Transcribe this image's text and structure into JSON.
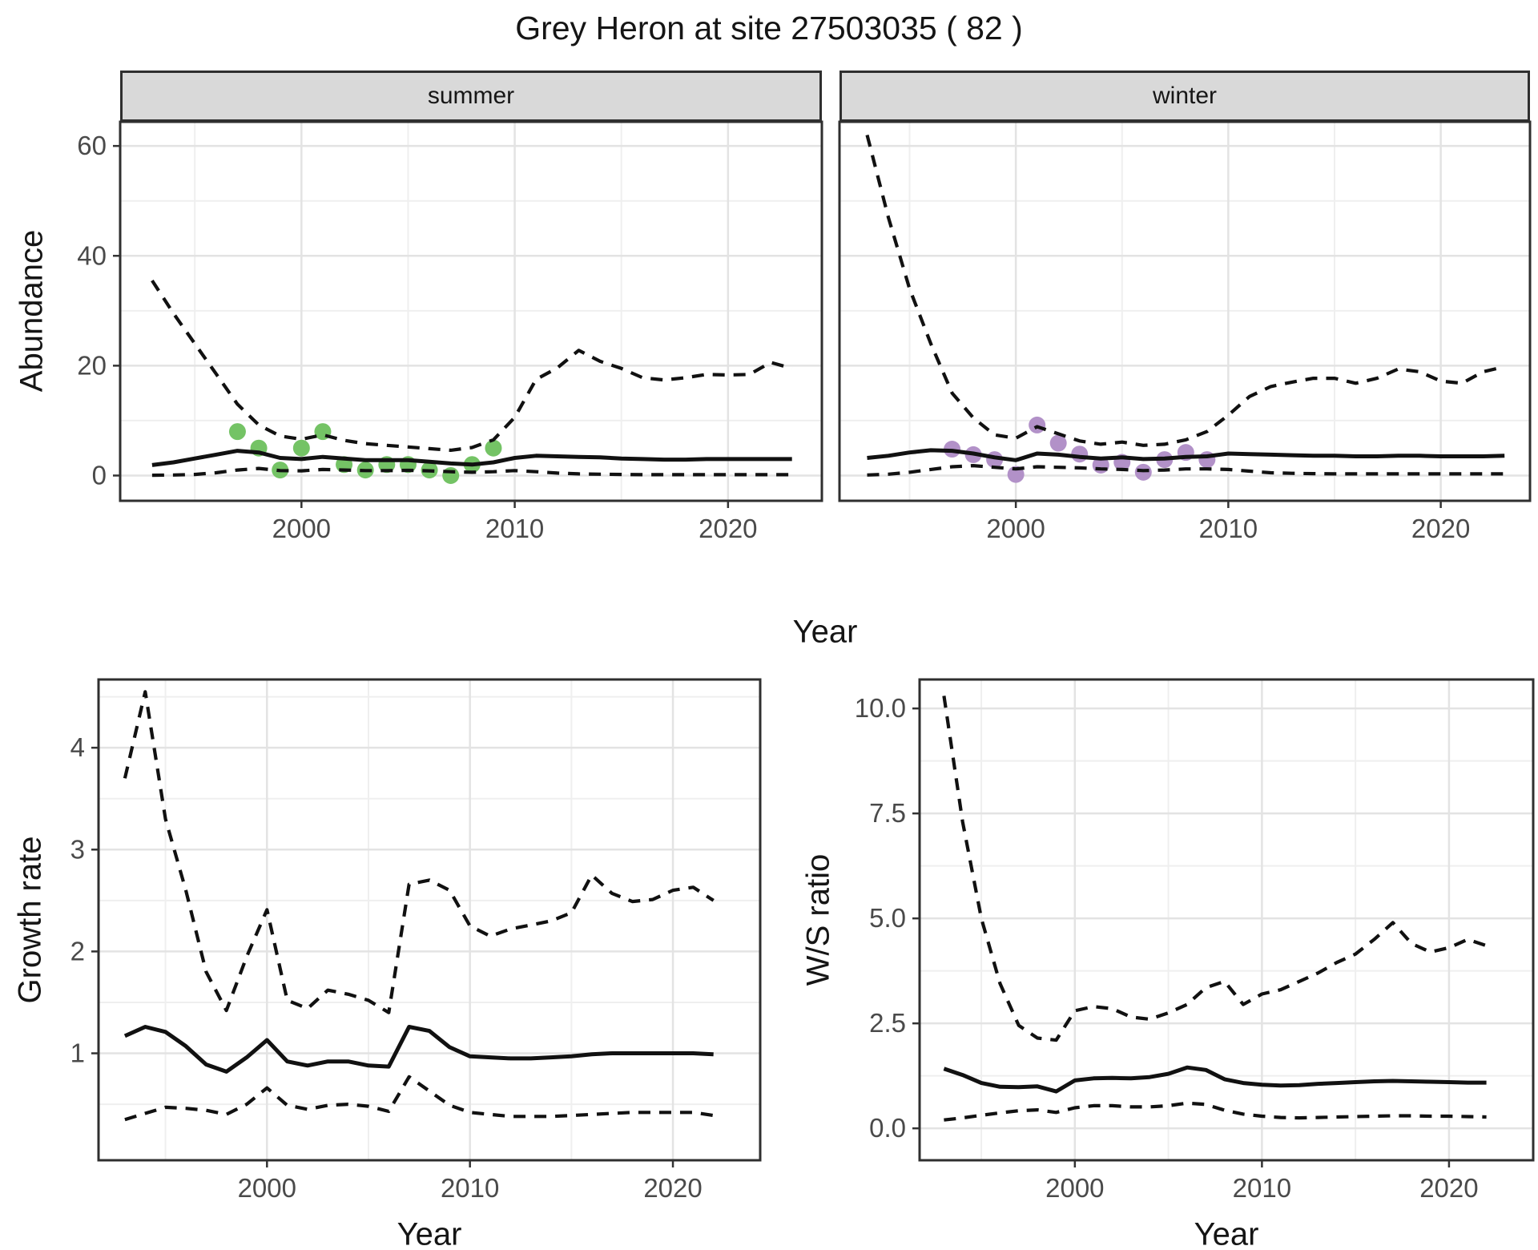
{
  "title": "Grey Heron at site 27503035 ( 82 )",
  "axes": {
    "abundance": "Abundance",
    "year": "Year",
    "growth_rate": "Growth rate",
    "ws_ratio": "W/S ratio"
  },
  "facets": {
    "summer": "summer",
    "winter": "winter"
  },
  "style": {
    "summer_point_color": "#74c365",
    "winter_point_color": "#b291c8",
    "line_color": "#111111",
    "grid_major_color": "#e3e3e3",
    "grid_minor_color": "#efefef",
    "strip_fill": "#d9d9d9",
    "panel_border_color": "#2f2f2f",
    "tick_color": "#333333",
    "tick_label_color": "#4a4a4a"
  },
  "chart_data": [
    {
      "id": "abundance-summer",
      "type": "line",
      "facet": "summer",
      "xlabel": "Year",
      "ylabel": "Abundance",
      "x": [
        1993,
        1994,
        1995,
        1996,
        1997,
        1998,
        1999,
        2000,
        2001,
        2002,
        2003,
        2004,
        2005,
        2006,
        2007,
        2008,
        2009,
        2010,
        2011,
        2012,
        2013,
        2014,
        2015,
        2016,
        2017,
        2018,
        2019,
        2020,
        2021,
        2022,
        2023
      ],
      "series": [
        {
          "name": "upper-95ci",
          "style": "dashed",
          "values": [
            35.5,
            29.5,
            24,
            18.5,
            13,
            9.2,
            7.2,
            6.6,
            7.4,
            6.4,
            5.8,
            5.5,
            5.2,
            4.9,
            4.6,
            5.1,
            6.5,
            10.6,
            17.5,
            19.6,
            22.8,
            20.8,
            19.5,
            17.8,
            17.4,
            17.8,
            18.4,
            18.3,
            18.4,
            20.6,
            19.5
          ]
        },
        {
          "name": "mean",
          "style": "solid",
          "values": [
            1.9,
            2.4,
            3.1,
            3.8,
            4.5,
            4.2,
            3.2,
            3.0,
            3.4,
            3.1,
            2.8,
            2.8,
            2.8,
            2.5,
            2.2,
            2.0,
            2.4,
            3.2,
            3.6,
            3.5,
            3.4,
            3.3,
            3.1,
            3.0,
            2.9,
            2.9,
            3.0,
            3.0,
            3.0,
            3.0,
            3.0
          ]
        },
        {
          "name": "lower-95ci",
          "style": "dashed",
          "values": [
            0.05,
            0.1,
            0.2,
            0.5,
            1.0,
            1.3,
            0.9,
            0.85,
            1.1,
            1.0,
            0.9,
            0.9,
            0.95,
            0.85,
            0.7,
            0.6,
            0.7,
            0.9,
            0.7,
            0.45,
            0.3,
            0.25,
            0.2,
            0.15,
            0.15,
            0.15,
            0.15,
            0.15,
            0.15,
            0.15,
            0.15
          ]
        }
      ],
      "observations": {
        "name": "summer-counts",
        "color": "#74c365",
        "x": [
          1997,
          1998,
          1999,
          2000,
          2001,
          2002,
          2003,
          2004,
          2005,
          2006,
          2007,
          2008,
          2009
        ],
        "y": [
          8,
          5,
          1,
          5,
          8,
          2,
          1,
          2,
          2,
          1,
          0,
          2,
          5
        ]
      },
      "xlim": [
        1991.5,
        2024.4
      ],
      "ylim": [
        -4.6,
        64.4
      ],
      "xticks": {
        "major": [
          2000,
          2010,
          2020
        ],
        "minor": [
          1995,
          2005,
          2015
        ],
        "labels": [
          "2000",
          "2010",
          "2020"
        ]
      },
      "yticks": {
        "major": [
          0,
          20,
          40,
          60
        ],
        "minor": [
          10,
          30,
          50
        ],
        "labels": [
          "0",
          "20",
          "40",
          "60"
        ]
      },
      "grid": true,
      "legend": "none"
    },
    {
      "id": "abundance-winter",
      "type": "line",
      "facet": "winter",
      "xlabel": "Year",
      "ylabel": "Abundance",
      "x": [
        1993,
        1994,
        1995,
        1996,
        1997,
        1998,
        1999,
        2000,
        2001,
        2002,
        2003,
        2004,
        2005,
        2006,
        2007,
        2008,
        2009,
        2010,
        2011,
        2012,
        2013,
        2014,
        2015,
        2016,
        2017,
        2018,
        2019,
        2020,
        2021,
        2022,
        2023
      ],
      "series": [
        {
          "name": "upper-95ci",
          "style": "dashed",
          "values": [
            62,
            47,
            34,
            24,
            15,
            10.5,
            7.4,
            6.8,
            8.9,
            7.6,
            6.3,
            5.7,
            6.1,
            5.5,
            5.7,
            6.5,
            8.0,
            11,
            14.4,
            16.2,
            17,
            17.7,
            17.7,
            16.8,
            17.7,
            19.4,
            18.9,
            17.2,
            16.8,
            18.9,
            19.8
          ]
        },
        {
          "name": "mean",
          "style": "solid",
          "values": [
            3.2,
            3.6,
            4.2,
            4.6,
            4.5,
            4.0,
            3.3,
            2.8,
            4.0,
            3.8,
            3.4,
            3.1,
            3.3,
            3.0,
            3.1,
            3.4,
            3.5,
            4.0,
            3.9,
            3.8,
            3.7,
            3.6,
            3.6,
            3.5,
            3.5,
            3.6,
            3.6,
            3.5,
            3.5,
            3.5,
            3.6
          ]
        },
        {
          "name": "lower-95ci",
          "style": "dashed",
          "values": [
            0.1,
            0.25,
            0.6,
            1.1,
            1.6,
            1.8,
            1.5,
            1.2,
            1.6,
            1.5,
            1.4,
            1.2,
            1.1,
            0.9,
            1.0,
            1.2,
            1.2,
            1.1,
            0.8,
            0.5,
            0.4,
            0.35,
            0.3,
            0.3,
            0.3,
            0.3,
            0.3,
            0.3,
            0.3,
            0.3,
            0.3
          ]
        }
      ],
      "observations": {
        "name": "winter-counts",
        "color": "#b291c8",
        "x": [
          1997,
          1998,
          1999,
          2000,
          2001,
          2002,
          2003,
          2004,
          2005,
          2006,
          2007,
          2008,
          2009
        ],
        "y": [
          4.8,
          3.8,
          2.9,
          0.2,
          9.2,
          5.9,
          3.9,
          1.9,
          2.4,
          0.6,
          2.9,
          4.2,
          2.9
        ]
      },
      "xlim": [
        1991.7,
        2024.2
      ],
      "ylim": [
        -4.6,
        64.4
      ],
      "xticks": {
        "major": [
          2000,
          2010,
          2020
        ],
        "minor": [
          1995,
          2005,
          2015
        ],
        "labels": [
          "2000",
          "2010",
          "2020"
        ]
      },
      "yticks": {
        "major": [
          0,
          20,
          40,
          60
        ],
        "minor": [
          10,
          30,
          50
        ],
        "labels": [
          "0",
          "20",
          "40",
          "60"
        ]
      },
      "grid": true,
      "legend": "none"
    },
    {
      "id": "growth-rate",
      "type": "line",
      "facet": "",
      "xlabel": "Year",
      "ylabel": "Growth rate",
      "x": [
        1993,
        1994,
        1995,
        1996,
        1997,
        1998,
        1999,
        2000,
        2001,
        2002,
        2003,
        2004,
        2005,
        2006,
        2007,
        2008,
        2009,
        2010,
        2011,
        2012,
        2013,
        2014,
        2015,
        2016,
        2017,
        2018,
        2019,
        2020,
        2021,
        2022
      ],
      "series": [
        {
          "name": "upper-95ci",
          "style": "dashed",
          "values": [
            3.7,
            4.55,
            3.3,
            2.6,
            1.8,
            1.42,
            1.95,
            2.41,
            1.52,
            1.44,
            1.62,
            1.58,
            1.52,
            1.4,
            2.66,
            2.7,
            2.6,
            2.25,
            2.15,
            2.22,
            2.26,
            2.3,
            2.38,
            2.75,
            2.57,
            2.49,
            2.51,
            2.6,
            2.63,
            2.5
          ]
        },
        {
          "name": "mean",
          "style": "solid",
          "values": [
            1.17,
            1.26,
            1.21,
            1.07,
            0.89,
            0.82,
            0.96,
            1.13,
            0.92,
            0.88,
            0.92,
            0.92,
            0.88,
            0.87,
            1.26,
            1.22,
            1.06,
            0.97,
            0.96,
            0.95,
            0.95,
            0.96,
            0.97,
            0.99,
            1.0,
            1.0,
            1.0,
            1.0,
            1.0,
            0.99
          ]
        },
        {
          "name": "lower-95ci",
          "style": "dashed",
          "values": [
            0.35,
            0.41,
            0.47,
            0.46,
            0.44,
            0.4,
            0.5,
            0.66,
            0.49,
            0.45,
            0.49,
            0.5,
            0.48,
            0.43,
            0.77,
            0.63,
            0.49,
            0.42,
            0.4,
            0.38,
            0.38,
            0.38,
            0.39,
            0.4,
            0.41,
            0.42,
            0.42,
            0.42,
            0.42,
            0.39
          ]
        }
      ],
      "xlim": [
        1991.7,
        2024.3
      ],
      "ylim": [
        -0.05,
        4.67
      ],
      "xticks": {
        "major": [
          2000,
          2010,
          2020
        ],
        "minor": [
          1995,
          2005,
          2015
        ],
        "labels": [
          "2000",
          "2010",
          "2020"
        ]
      },
      "yticks": {
        "major": [
          1,
          2,
          3,
          4
        ],
        "minor": [
          0.5,
          1.5,
          2.5,
          3.5,
          4.5
        ],
        "labels": [
          "1",
          "2",
          "3",
          "4"
        ]
      },
      "grid": true,
      "legend": "none"
    },
    {
      "id": "ws-ratio",
      "type": "line",
      "facet": "",
      "xlabel": "Year",
      "ylabel": "W/S ratio",
      "x": [
        1993,
        1994,
        1995,
        1996,
        1997,
        1998,
        1999,
        2000,
        2001,
        2002,
        2003,
        2004,
        2005,
        2006,
        2007,
        2008,
        2009,
        2010,
        2011,
        2012,
        2013,
        2014,
        2015,
        2016,
        2017,
        2018,
        2019,
        2020,
        2021,
        2022
      ],
      "series": [
        {
          "name": "upper-95ci",
          "style": "dashed",
          "values": [
            10.3,
            7.3,
            5.0,
            3.45,
            2.45,
            2.15,
            2.1,
            2.8,
            2.9,
            2.85,
            2.65,
            2.6,
            2.75,
            2.95,
            3.35,
            3.5,
            2.95,
            3.2,
            3.3,
            3.5,
            3.7,
            3.95,
            4.15,
            4.5,
            4.9,
            4.4,
            4.2,
            4.3,
            4.5,
            4.35
          ]
        },
        {
          "name": "mean",
          "style": "solid",
          "values": [
            1.42,
            1.27,
            1.08,
            0.99,
            0.98,
            1.0,
            0.88,
            1.14,
            1.19,
            1.2,
            1.19,
            1.22,
            1.3,
            1.45,
            1.39,
            1.17,
            1.08,
            1.04,
            1.02,
            1.03,
            1.06,
            1.08,
            1.1,
            1.12,
            1.13,
            1.12,
            1.11,
            1.1,
            1.09,
            1.09
          ]
        },
        {
          "name": "lower-95ci",
          "style": "dashed",
          "values": [
            0.2,
            0.25,
            0.31,
            0.37,
            0.42,
            0.44,
            0.38,
            0.49,
            0.54,
            0.54,
            0.51,
            0.51,
            0.54,
            0.6,
            0.57,
            0.43,
            0.34,
            0.29,
            0.26,
            0.25,
            0.26,
            0.27,
            0.28,
            0.29,
            0.3,
            0.3,
            0.29,
            0.29,
            0.28,
            0.27
          ]
        }
      ],
      "xlim": [
        1991.7,
        2024.5
      ],
      "ylim": [
        -0.76,
        10.69
      ],
      "xticks": {
        "major": [
          2000,
          2010,
          2020
        ],
        "minor": [
          1995,
          2005,
          2015
        ],
        "labels": [
          "2000",
          "2010",
          "2020"
        ]
      },
      "yticks": {
        "major": [
          0,
          2.5,
          5,
          7.5,
          10
        ],
        "minor": [
          1.25,
          3.75,
          6.25,
          8.75
        ],
        "labels": [
          "0.0",
          "2.5",
          "5.0",
          "7.5",
          "10.0"
        ]
      },
      "grid": true,
      "legend": "none"
    }
  ]
}
